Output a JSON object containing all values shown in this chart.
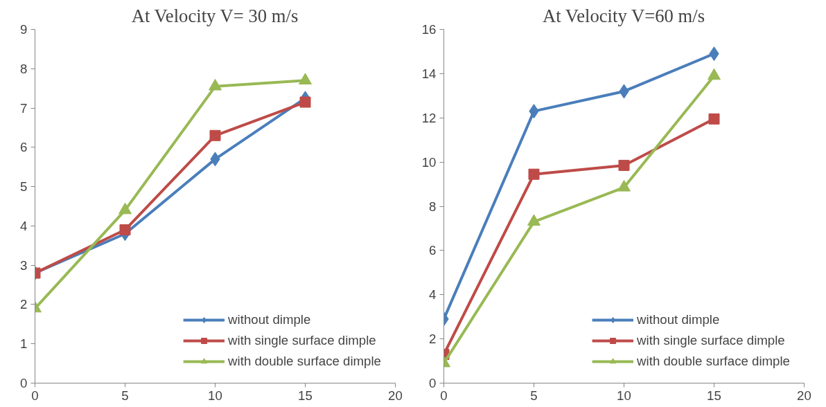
{
  "chart_data": [
    {
      "type": "line",
      "title": "At Velocity V= 30 m/s",
      "x": [
        0,
        5,
        10,
        15
      ],
      "xlim": [
        0,
        20
      ],
      "xticks": [
        0,
        5,
        10,
        15,
        20
      ],
      "ylim": [
        0,
        9
      ],
      "yticks": [
        0,
        1,
        2,
        3,
        4,
        5,
        6,
        7,
        8,
        9
      ],
      "grid": false,
      "legend": "bottom right",
      "series": [
        {
          "name": "without dimple",
          "color": "#4a7ebb",
          "marker": "diamond",
          "values": [
            2.8,
            3.8,
            5.7,
            7.25
          ]
        },
        {
          "name": "with single surface dimple",
          "color": "#be4b48",
          "marker": "square",
          "values": [
            2.8,
            3.9,
            6.3,
            7.15
          ]
        },
        {
          "name": "with double surface dimple",
          "color": "#98b954",
          "marker": "triangle",
          "values": [
            1.9,
            4.4,
            7.55,
            7.7
          ]
        }
      ]
    },
    {
      "type": "line",
      "title": "At Velocity V=60 m/s",
      "x": [
        0,
        5,
        10,
        15
      ],
      "xlim": [
        0,
        20
      ],
      "xticks": [
        0,
        5,
        10,
        15,
        20
      ],
      "ylim": [
        0,
        16
      ],
      "yticks": [
        0,
        2,
        4,
        6,
        8,
        10,
        12,
        14,
        16
      ],
      "grid": false,
      "legend": "bottom right",
      "series": [
        {
          "name": "without dimple",
          "color": "#4a7ebb",
          "marker": "diamond",
          "values": [
            2.9,
            12.3,
            13.2,
            14.9
          ]
        },
        {
          "name": "with single surface dimple",
          "color": "#be4b48",
          "marker": "square",
          "values": [
            1.3,
            9.45,
            9.85,
            11.95
          ]
        },
        {
          "name": "with double surface dimple",
          "color": "#98b954",
          "marker": "triangle",
          "values": [
            0.9,
            7.3,
            8.85,
            13.9
          ]
        }
      ]
    }
  ]
}
